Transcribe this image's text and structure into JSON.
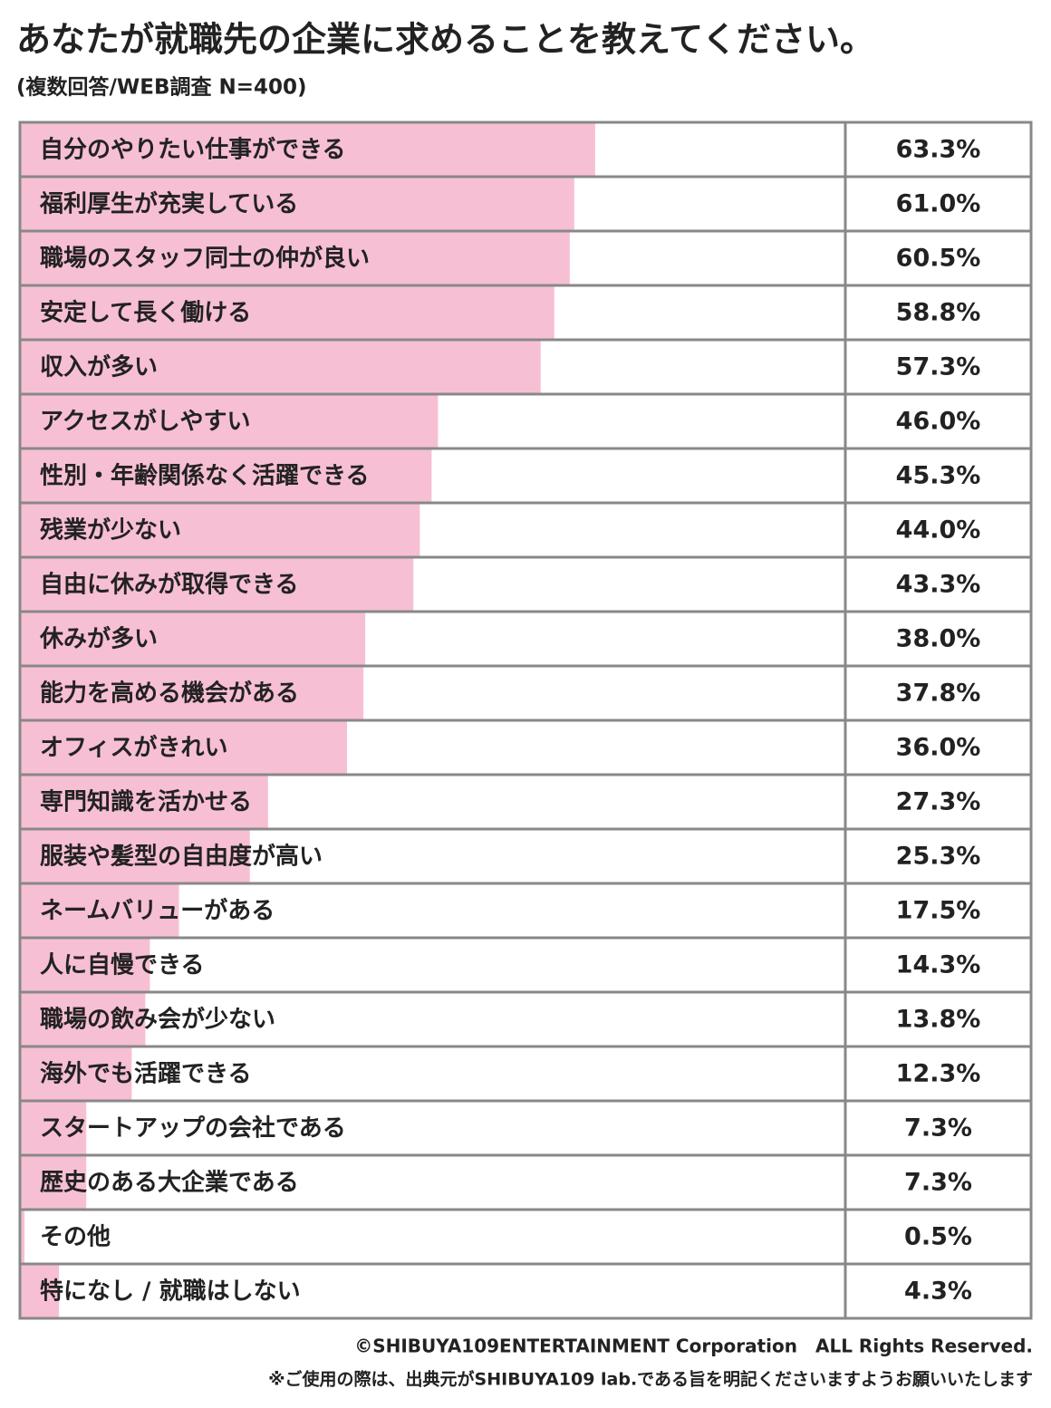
{
  "chart_data": {
    "type": "bar",
    "orientation": "horizontal",
    "title": "あなたが就職先の企業に求めることを教えてください。",
    "subtitle": "(複数回答/WEB調査 N=400)",
    "categories": [
      "自分のやりたい仕事ができる",
      "福利厚生が充実している",
      "職場のスタッフ同士の仲が良い",
      "安定して長く働ける",
      "収入が多い",
      "アクセスがしやすい",
      "性別・年齢関係なく活躍できる",
      "残業が少ない",
      "自由に休みが取得できる",
      "休みが多い",
      "能力を高める機会がある",
      "オフィスがきれい",
      "専門知識を活かせる",
      "服装や髪型の自由度が高い",
      "ネームバリューがある",
      "人に自慢できる",
      "職場の飲み会が少ない",
      "海外でも活躍できる",
      "スタートアップの会社である",
      "歴史のある大企業である",
      "その他",
      "特になし / 就職はしない"
    ],
    "values": [
      63.3,
      61.0,
      60.5,
      58.8,
      57.3,
      46.0,
      45.3,
      44.0,
      43.3,
      38.0,
      37.8,
      36.0,
      27.3,
      25.3,
      17.5,
      14.3,
      13.8,
      12.3,
      7.3,
      7.3,
      0.5,
      4.3
    ],
    "value_labels": [
      "63.3%",
      "61.0%",
      "60.5%",
      "58.8%",
      "57.3%",
      "46.0%",
      "45.3%",
      "44.0%",
      "43.3%",
      "38.0%",
      "37.8%",
      "36.0%",
      "27.3%",
      "25.3%",
      "17.5%",
      "14.3%",
      "13.8%",
      "12.3%",
      "7.3%",
      "7.3%",
      "0.5%",
      "4.3%"
    ],
    "color": "#f7bfd4",
    "xlim": [
      0,
      100
    ],
    "footer": [
      "©SHIBUYA109ENTERTAINMENT Corporation　ALL Rights Reserved.",
      "※ご使用の際は、出典元がSHIBUYA109 lab.である旨を明記くださいますようお願いいたします"
    ]
  }
}
